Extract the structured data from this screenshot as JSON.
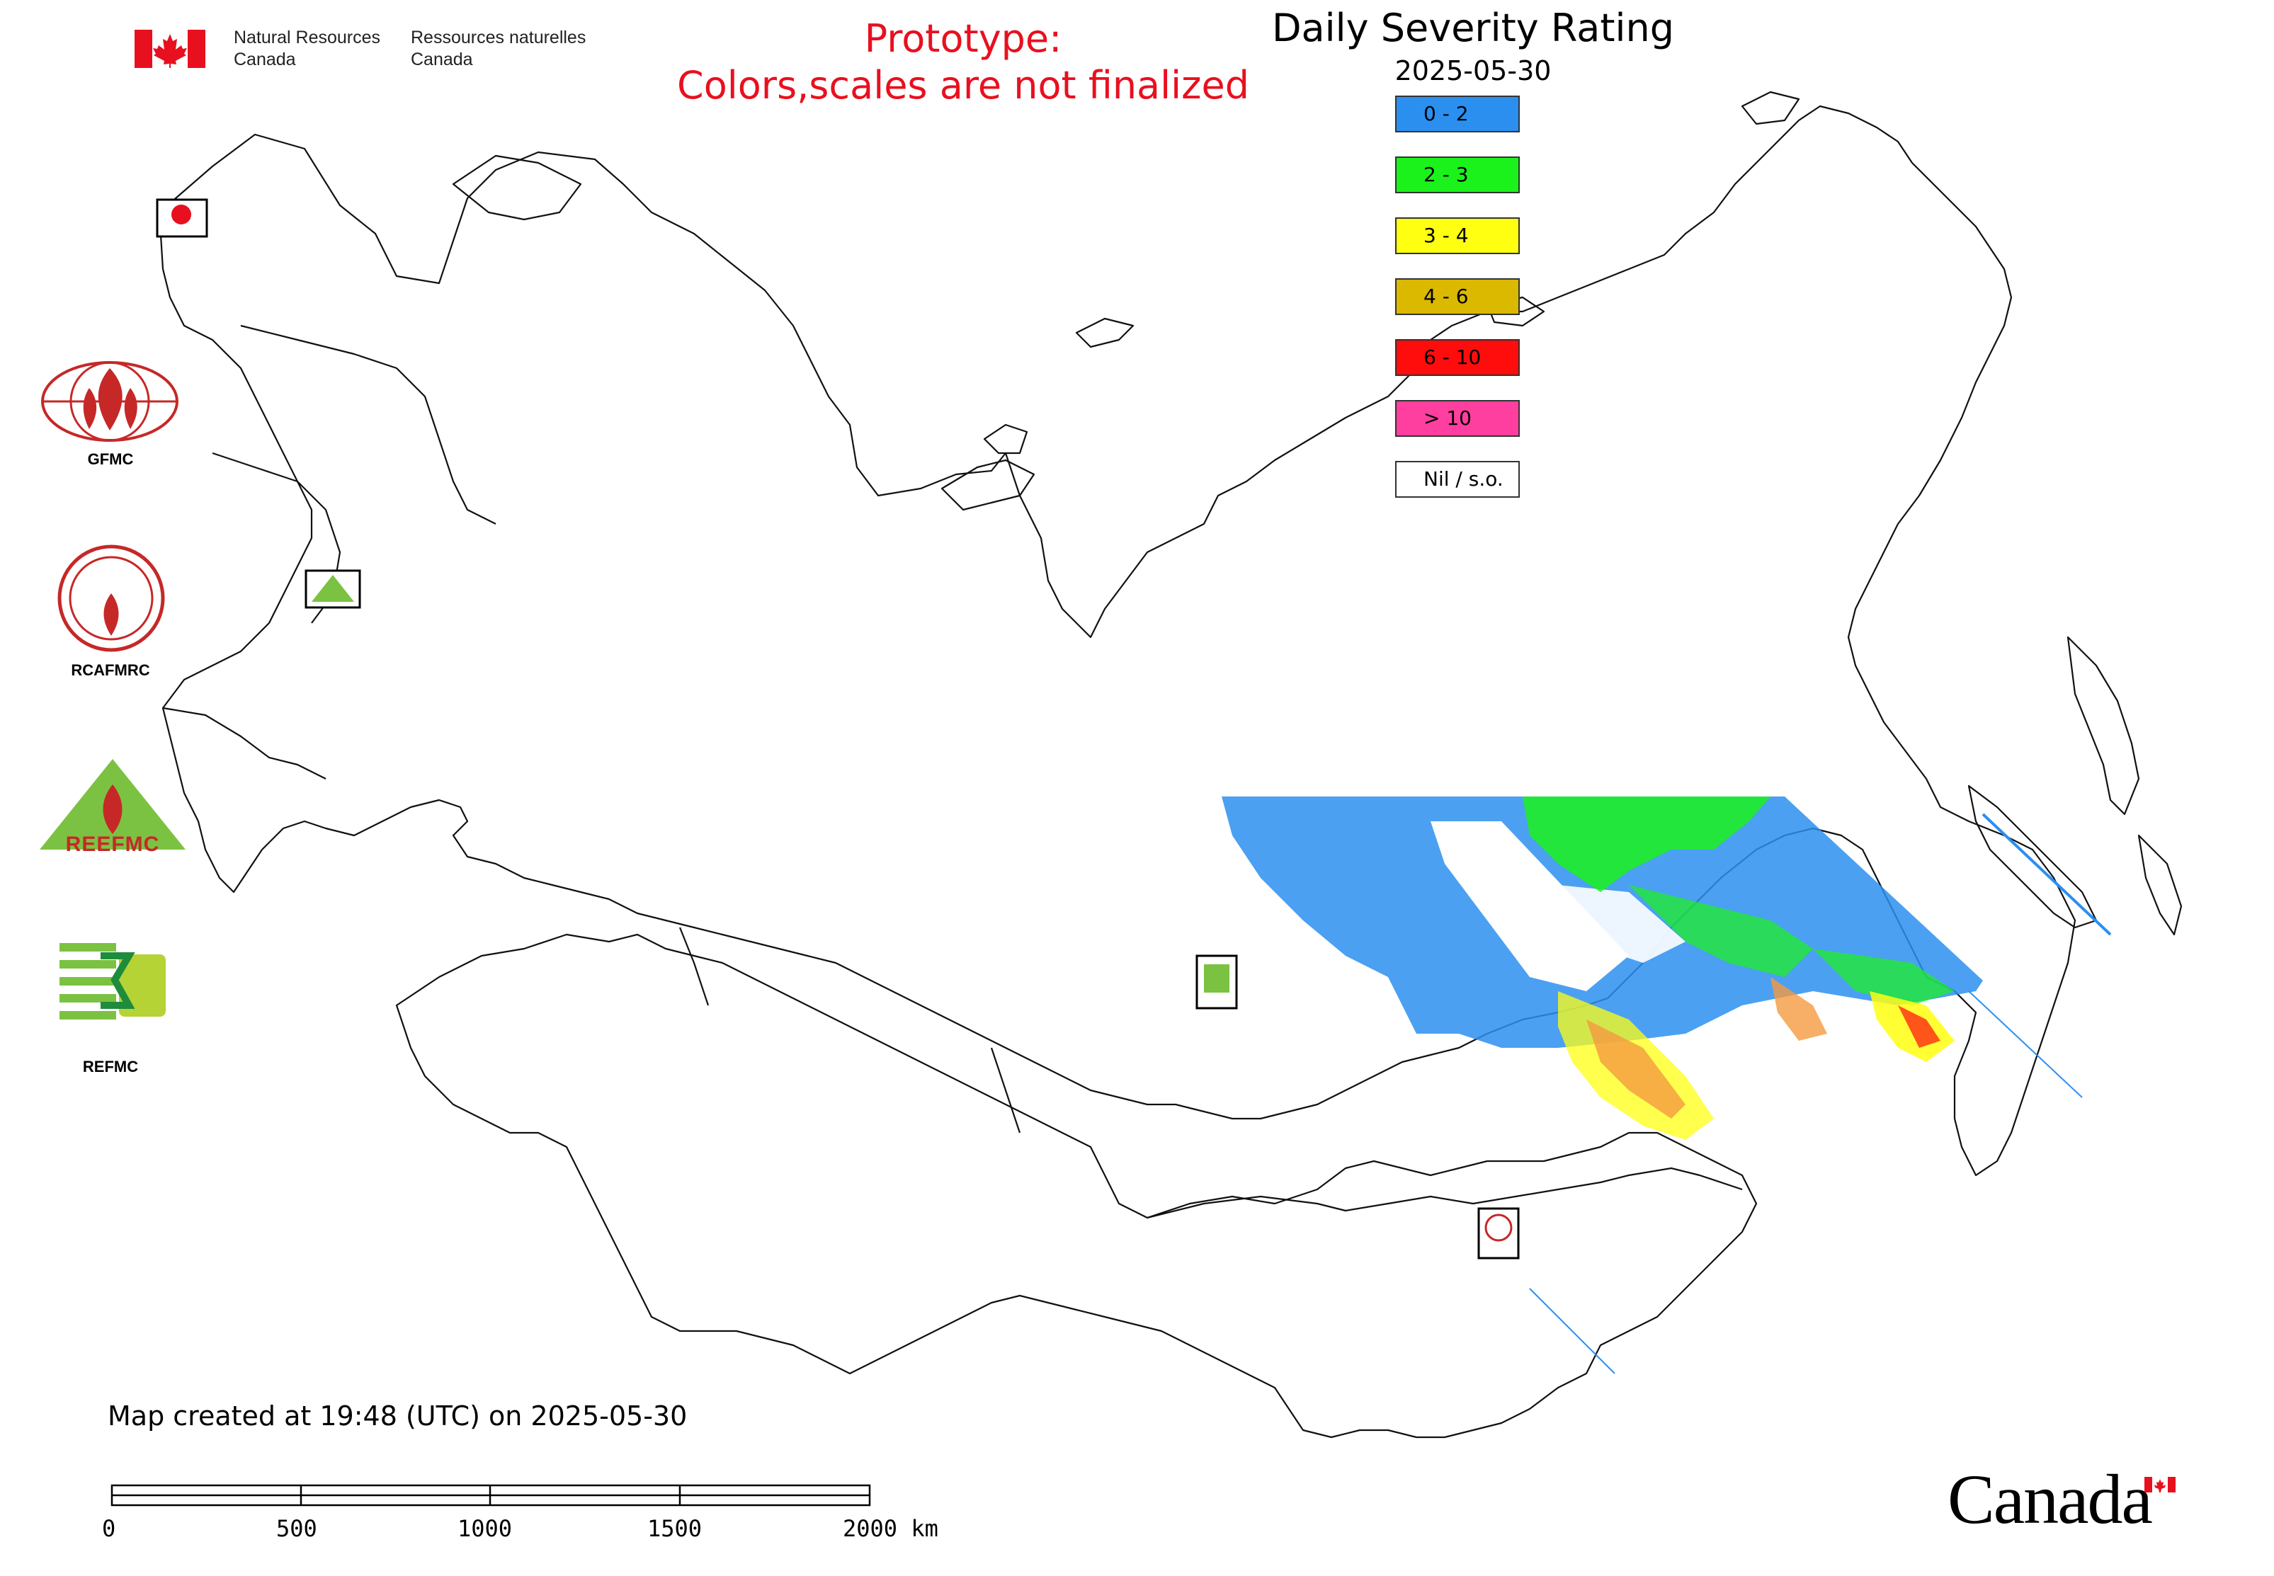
{
  "header": {
    "agency_en": "Natural Resources\nCanada",
    "agency_fr": "Ressources naturelles\nCanada",
    "prototype_note": "Prototype:\nColors,scales are not finalized",
    "title": "Daily Severity Rating",
    "date": "2025-05-30"
  },
  "legend": [
    {
      "label": "0 - 2",
      "color": "#2b8ff0"
    },
    {
      "label": "2 - 3",
      "color": "#1bf21b"
    },
    {
      "label": "3 - 4",
      "color": "#ffff11"
    },
    {
      "label": "4 - 6",
      "color": "#dab900"
    },
    {
      "label": "6 - 10",
      "color": "#ff0d0d"
    },
    {
      "label": "> 10",
      "color": "#ff3fa0"
    },
    {
      "label": "Nil / s.o.",
      "color": "#ffffff"
    }
  ],
  "logos": {
    "gfmc": "GFMC",
    "rcafmrc": "RCAFMRC",
    "reefmc_text": "REEFMC",
    "refmc": "REFMC"
  },
  "footer": {
    "created": "Map created at 19:48 (UTC) on 2025-05-30",
    "scale_ticks": [
      "0",
      "500",
      "1000",
      "1500",
      "2000 km"
    ],
    "wordmark": "Canada"
  }
}
